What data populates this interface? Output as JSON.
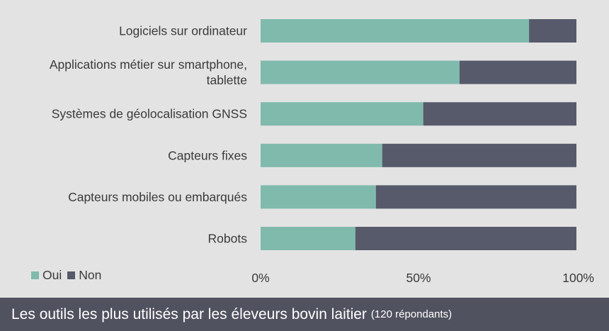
{
  "chart_data": {
    "type": "bar",
    "orientation": "horizontal",
    "stacked": true,
    "categories": [
      [
        "Logiciels sur ordinateur"
      ],
      [
        "Applications métier sur smartphone,",
        "tablette"
      ],
      [
        "Systèmes de géolocalisation GNSS"
      ],
      [
        "Capteurs fixes"
      ],
      [
        "Capteurs mobiles ou embarqués"
      ],
      [
        "Robots"
      ]
    ],
    "series": [
      {
        "name": "Oui",
        "color": "#7fbaad",
        "values": [
          85,
          63,
          51.5,
          38.5,
          36.5,
          30
        ]
      },
      {
        "name": "Non",
        "color": "#575a6b",
        "values": [
          15,
          37,
          48.5,
          61.5,
          63.5,
          70
        ]
      }
    ],
    "xlim": [
      0,
      100
    ],
    "xticks": [
      0,
      50,
      100
    ],
    "xtick_labels": [
      "0%",
      "50%",
      "100%"
    ],
    "grid": false,
    "legend_position": "bottom-left",
    "title": "Les outils les plus utilisés par les éleveurs bovin laitier",
    "subtitle": "(120 répondants)"
  }
}
